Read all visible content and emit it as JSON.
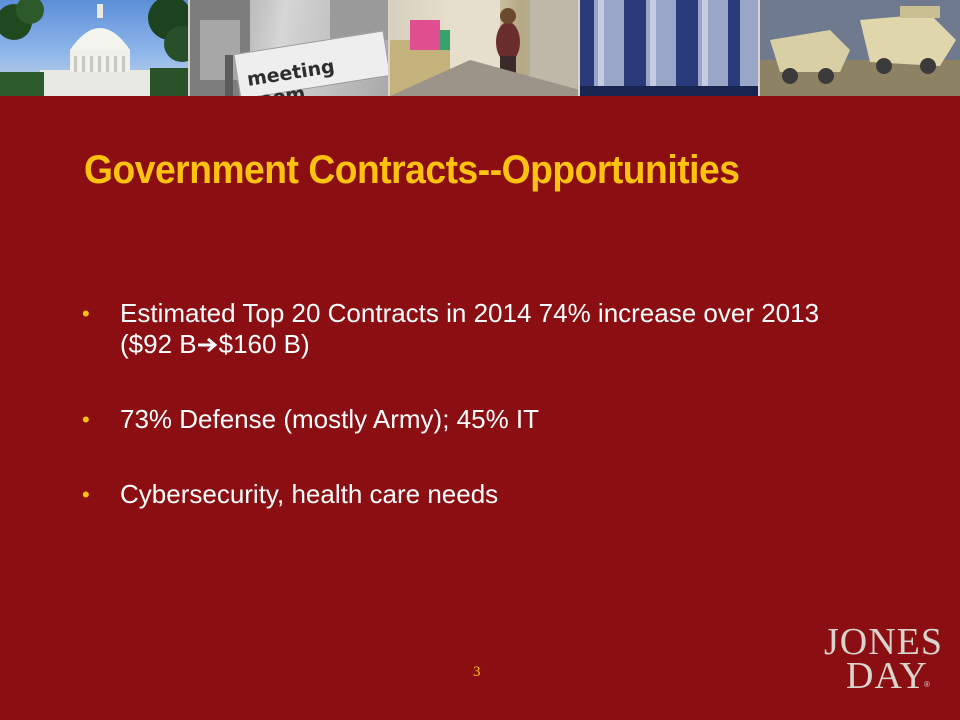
{
  "slide": {
    "title": "Government Contracts--Opportunities",
    "bullets": [
      {
        "before_arrow": "Estimated Top 20 Contracts in 2014 74% increase over 2013 ($92 B",
        "after_arrow": "$160 B)"
      },
      {
        "text": "73% Defense (mostly Army); 45% IT"
      },
      {
        "text": "Cybersecurity, health care needs"
      }
    ],
    "bullet_char": "•",
    "page_number": "3",
    "banner_sign_text": "meeting room"
  },
  "logo": {
    "line1": "JONES",
    "line2": "DAY",
    "registered": "®"
  },
  "colors": {
    "background": "#8b0e13",
    "title": "#ffc20e",
    "body_text": "#ffffff",
    "bullet": "#ffc20e",
    "logo": "#d9d4cc"
  }
}
